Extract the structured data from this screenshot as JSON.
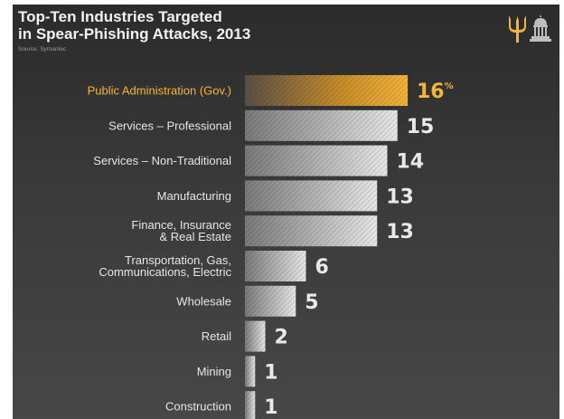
{
  "title": "Top-Ten Industries Targeted\nin Spear-Phishing Attacks, 2013",
  "source": "Source: Symantec",
  "logo_icon": "trident-capitol-icon",
  "colors": {
    "highlight": "#f4b43a",
    "bar_light": "#e8e8e8",
    "bar_dark": "#7a7a7a",
    "text": "#e6e6e6"
  },
  "chart_data": {
    "type": "bar",
    "orientation": "horizontal",
    "title": "Top-Ten Industries Targeted in Spear-Phishing Attacks, 2013",
    "unit": "%",
    "highlight_index": 0,
    "categories": [
      "Public Administration (Gov.)",
      "Services – Professional",
      "Services – Non-Traditional",
      "Manufacturing",
      "Finance, Insurance\n& Real Estate",
      "Transportation, Gas,\nCommunications, Electric",
      "Wholesale",
      "Retail",
      "Mining",
      "Construction"
    ],
    "values": [
      16,
      15,
      14,
      13,
      13,
      6,
      5,
      2,
      1,
      1
    ],
    "value_labels": [
      "16",
      "15",
      "14",
      "13",
      "13",
      "6",
      "5",
      "2",
      "1",
      "1"
    ],
    "xlim": [
      0,
      16
    ],
    "grid": false,
    "legend": "none"
  }
}
